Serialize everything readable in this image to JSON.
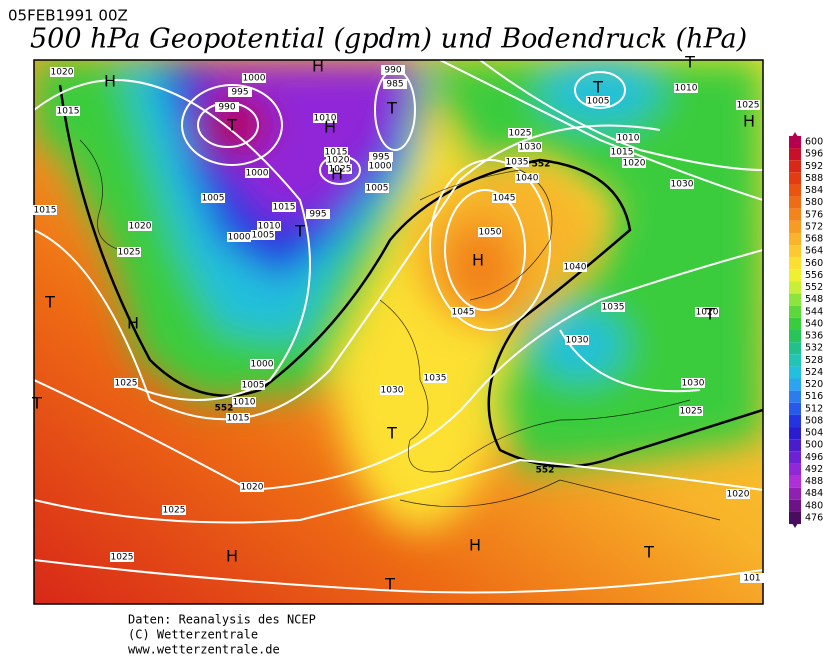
{
  "header": {
    "date": "05FEB1991 00Z",
    "title": "500 hPa Geopotential (gpdm) und Bodendruck (hPa)"
  },
  "footer": {
    "lines": [
      "Daten: Reanalysis des NCEP",
      "(C) Wetterzentrale",
      "www.wetterzentrale.de"
    ]
  },
  "color_scale": {
    "levels": [
      600,
      596,
      592,
      588,
      584,
      580,
      576,
      572,
      568,
      564,
      560,
      556,
      552,
      548,
      544,
      540,
      536,
      532,
      528,
      524,
      520,
      516,
      512,
      508,
      504,
      500,
      496,
      492,
      488,
      484,
      480,
      476
    ],
    "colors": [
      "#b4004e",
      "#c8102a",
      "#d82818",
      "#e43c10",
      "#ea5410",
      "#ee6c14",
      "#f2841c",
      "#f69c22",
      "#f8b42a",
      "#fcca30",
      "#fce030",
      "#f0f032",
      "#c8ee3a",
      "#8ee43e",
      "#5cd83c",
      "#3acc3c",
      "#28c45a",
      "#22c08a",
      "#22c4b4",
      "#22c0dc",
      "#2ca4f0",
      "#2c7cf0",
      "#2858ec",
      "#2434e0",
      "#2c1cd0",
      "#4a1ccc",
      "#6e20d4",
      "#9028d8",
      "#b030d8",
      "#9020b0",
      "#6a1488",
      "#4a0c60"
    ]
  },
  "map": {
    "isobar_labels": [
      "1020",
      "1015",
      "1000",
      "995",
      "990",
      "990",
      "985",
      "1010",
      "1015",
      "1020",
      "1025",
      "995",
      "1000",
      "1005",
      "1000",
      "1005",
      "1015",
      "995",
      "1010",
      "1005",
      "1000",
      "1015",
      "1020",
      "1025",
      "1025",
      "1030",
      "1035",
      "1040",
      "1045",
      "1050",
      "1045",
      "1040",
      "1035",
      "1030",
      "1010",
      "1015",
      "1020",
      "1030",
      "1005",
      "1010",
      "1025",
      "1020",
      "1030",
      "1025",
      "1020",
      "1000",
      "1005",
      "1010",
      "1015",
      "1025",
      "1030",
      "1035",
      "1020",
      "1025",
      "1025",
      "101"
    ],
    "pressure_centers": [
      "H",
      "H",
      "T",
      "T",
      "H",
      "T",
      "T",
      "H",
      "H",
      "T",
      "H",
      "T",
      "H",
      "T",
      "T",
      "H",
      "T",
      "H",
      "T",
      "T"
    ],
    "height_labels": [
      "552",
      "552",
      "552"
    ]
  }
}
